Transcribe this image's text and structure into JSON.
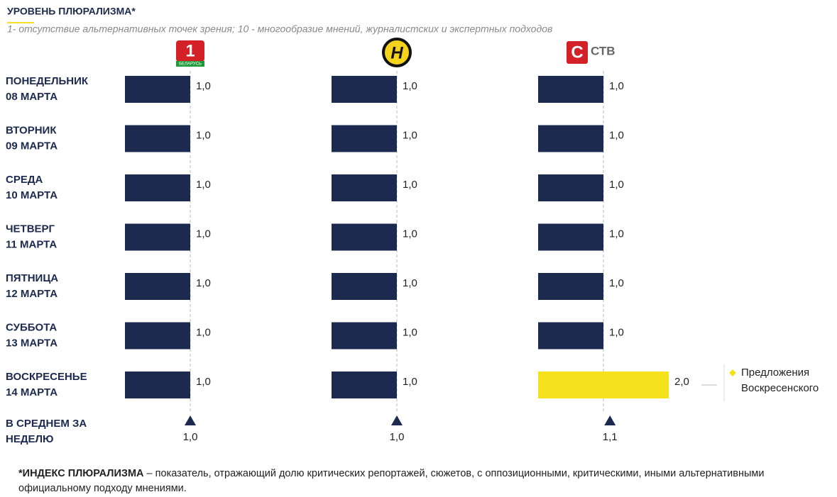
{
  "title": "УРОВЕНЬ ПЛЮРАЛИЗМА*",
  "subtitle": "1- отсутствие альтернативных точек зрения; 10 - многообразие мнений, журналистских и экспертных подходов",
  "row_labels": [
    [
      "ПОНЕДЕЛЬНИК",
      "08 МАРТА"
    ],
    [
      "ВТОРНИК",
      "09 МАРТА"
    ],
    [
      "СРЕДА",
      "10 МАРТА"
    ],
    [
      "ЧЕТВЕРГ",
      "11 МАРТА"
    ],
    [
      "ПЯТНИЦА",
      "12 МАРТА"
    ],
    [
      "СУББОТА",
      "13 МАРТА"
    ],
    [
      "ВОСКРЕСЕНЬЕ",
      "14 МАРТА"
    ]
  ],
  "average_label": [
    "В СРЕДНЕМ ЗА",
    "НЕДЕЛЮ"
  ],
  "footnote": {
    "bold": "*ИНДЕКС ПЛЮРАЛИЗМА",
    "text": " – показатель, отражающий долю критических репортажей, сюжетов, с оппозиционными, критическими, иными альтернативными официальному подходу мнениями."
  },
  "chart_data": [
    {
      "type": "bar",
      "logo": [
        "1",
        "БЕЛАРУСЬ"
      ],
      "values": [
        1,
        1,
        1,
        1,
        1,
        1,
        1
      ],
      "value_labels": [
        "1,0",
        "1,0",
        "1,0",
        "1,0",
        "1,0",
        "1,0",
        "1,0"
      ],
      "colors": [
        "#1c2a4f",
        "#1c2a4f",
        "#1c2a4f",
        "#1c2a4f",
        "#1c2a4f",
        "#1c2a4f",
        "#1c2a4f"
      ],
      "average": 1.0,
      "average_label": "1,0",
      "reference": 1,
      "xlim": [
        0,
        3
      ]
    },
    {
      "type": "bar",
      "logo": [
        "Н"
      ],
      "values": [
        1,
        1,
        1,
        1,
        1,
        1,
        1
      ],
      "value_labels": [
        "1,0",
        "1,0",
        "1,0",
        "1,0",
        "1,0",
        "1,0",
        "1,0"
      ],
      "colors": [
        "#1c2a4f",
        "#1c2a4f",
        "#1c2a4f",
        "#1c2a4f",
        "#1c2a4f",
        "#1c2a4f",
        "#1c2a4f"
      ],
      "average": 1.0,
      "average_label": "1,0",
      "reference": 1,
      "xlim": [
        0,
        3
      ]
    },
    {
      "type": "bar",
      "logo": [
        "С",
        "СТВ"
      ],
      "values": [
        1,
        1,
        1,
        1,
        1,
        1,
        2
      ],
      "value_labels": [
        "1,0",
        "1,0",
        "1,0",
        "1,0",
        "1,0",
        "1,0",
        "2,0"
      ],
      "colors": [
        "#1c2a4f",
        "#1c2a4f",
        "#1c2a4f",
        "#1c2a4f",
        "#1c2a4f",
        "#1c2a4f",
        "#f5e21c"
      ],
      "average": 1.1,
      "average_label": "1,1",
      "reference": 1,
      "xlim": [
        0,
        3
      ],
      "annotation": {
        "text": [
          "Предложения",
          "Воскресенского"
        ],
        "color": "#f5e21c"
      }
    }
  ]
}
